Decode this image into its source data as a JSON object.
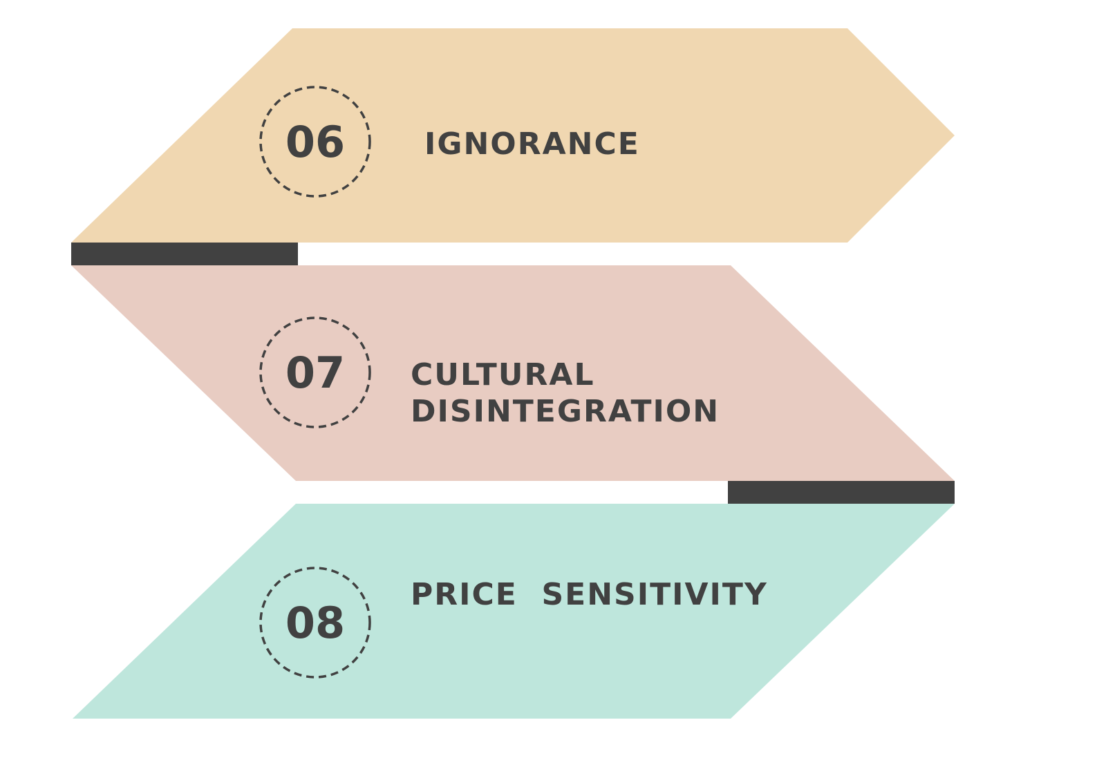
{
  "steps": [
    {
      "number": "06",
      "lines": [
        "IGNORANCE"
      ],
      "color": "#F0D7B1"
    },
    {
      "number": "07",
      "lines": [
        "CULTURAL",
        "DISINTEGRATION"
      ],
      "color": "#E8CCC2"
    },
    {
      "number": "08",
      "lines": [
        "PRICE  SENSITIVITY"
      ],
      "color": "#BEE6DC"
    }
  ],
  "connector_color": "#414141"
}
